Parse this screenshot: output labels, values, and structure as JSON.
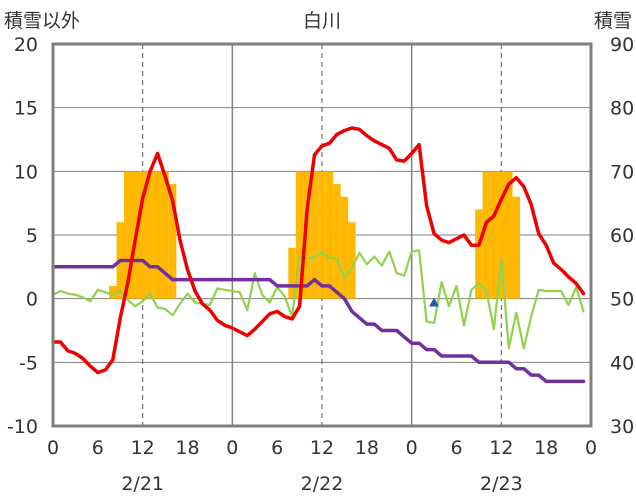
{
  "chart_data": {
    "type": "line",
    "title": "白川",
    "left_axis": {
      "label": "積雪以外",
      "range": [
        -10,
        20
      ],
      "ticks": [
        -10,
        -5,
        0,
        5,
        10,
        15,
        20
      ]
    },
    "right_axis": {
      "label": "積雪",
      "range": [
        30,
        90
      ],
      "ticks": [
        30,
        40,
        50,
        60,
        70,
        80,
        90
      ]
    },
    "x_axis": {
      "range": [
        0,
        72
      ],
      "tick_values": [
        0,
        6,
        12,
        18,
        24,
        30,
        36,
        42,
        48,
        54,
        60,
        66,
        72
      ],
      "tick_labels": [
        "0",
        "6",
        "12",
        "18",
        "0",
        "6",
        "12",
        "18",
        "0",
        "6",
        "12",
        "18",
        "0"
      ],
      "day_separators": [
        24,
        48
      ],
      "dashed_lines": [
        12,
        36,
        60
      ],
      "date_labels": [
        {
          "x": 12,
          "text": "2/21"
        },
        {
          "x": 36,
          "text": "2/22"
        },
        {
          "x": 60,
          "text": "2/23"
        }
      ]
    },
    "grid": true,
    "colors": {
      "snow": "#FFB800",
      "temperature": "#EE0000",
      "snow_depth": "#7030A0",
      "wind": "#92D050",
      "marker": "#1F5BA6",
      "frame": "#7F7F7F"
    },
    "snow_bars": {
      "axis": "right",
      "x": [
        8,
        9,
        10,
        11,
        12,
        13,
        14,
        15,
        16,
        32,
        33,
        34,
        35,
        36,
        37,
        38,
        39,
        40,
        57,
        58,
        59,
        60,
        61,
        62
      ],
      "values": [
        52,
        62,
        70,
        70,
        70,
        70,
        70,
        70,
        68,
        58,
        70,
        70,
        70,
        70,
        70,
        68,
        66,
        62,
        64,
        70,
        70,
        70,
        70,
        66
      ]
    },
    "series": [
      {
        "key": "temperature",
        "axis": "left",
        "x": [
          0,
          1,
          2,
          3,
          4,
          5,
          6,
          7,
          8,
          9,
          10,
          11,
          12,
          13,
          14,
          15,
          16,
          17,
          18,
          19,
          20,
          21,
          22,
          23,
          24,
          25,
          26,
          27,
          28,
          29,
          30,
          31,
          32,
          33,
          34,
          35,
          36,
          37,
          38,
          39,
          40,
          41,
          42,
          43,
          44,
          45,
          46,
          47,
          48,
          49,
          50,
          51,
          52,
          53,
          54,
          55,
          56,
          57,
          58,
          59,
          60,
          61,
          62,
          63,
          64,
          65,
          66,
          67,
          68,
          69,
          70,
          71
        ],
        "values": [
          -3.4,
          -3.4,
          -4.1,
          -4.3,
          -4.7,
          -5.3,
          -5.8,
          -5.6,
          -4.8,
          -1.5,
          1.2,
          4.6,
          7.9,
          10.0,
          11.4,
          9.6,
          7.7,
          4.6,
          2.3,
          0.6,
          -0.4,
          -0.9,
          -1.7,
          -2.1,
          -2.3,
          -2.6,
          -2.9,
          -2.4,
          -1.8,
          -1.2,
          -1.0,
          -1.4,
          -1.6,
          -0.6,
          7.0,
          11.3,
          12.0,
          12.2,
          12.9,
          13.2,
          13.4,
          13.3,
          12.8,
          12.4,
          12.1,
          11.8,
          10.9,
          10.8,
          11.4,
          12.1,
          7.3,
          5.1,
          4.6,
          4.4,
          4.7,
          5.0,
          4.2,
          4.2,
          6.0,
          6.5,
          7.8,
          9.0,
          9.5,
          8.8,
          7.4,
          5.1,
          4.2,
          2.8,
          2.3,
          1.7,
          1.2,
          0.4
        ]
      },
      {
        "key": "snow_depth",
        "axis": "left",
        "x": [
          0,
          6,
          7,
          8,
          9,
          10,
          11,
          12,
          13,
          14,
          15,
          16,
          17,
          18,
          19,
          20,
          21,
          22,
          23,
          24,
          25,
          26,
          27,
          28,
          29,
          30,
          31,
          32,
          33,
          34,
          35,
          36,
          37,
          38,
          39,
          40,
          41,
          42,
          43,
          44,
          45,
          46,
          47,
          48,
          49,
          50,
          51,
          52,
          53,
          54,
          55,
          56,
          57,
          58,
          59,
          60,
          61,
          62,
          63,
          64,
          65,
          66,
          67,
          68,
          69,
          70,
          71
        ],
        "values": [
          2.5,
          2.5,
          2.5,
          2.5,
          3.0,
          3.0,
          3.0,
          3.0,
          2.5,
          2.5,
          2.0,
          1.5,
          1.5,
          1.5,
          1.5,
          1.5,
          1.5,
          1.5,
          1.5,
          1.5,
          1.5,
          1.5,
          1.5,
          1.5,
          1.5,
          1.0,
          1.0,
          1.0,
          1.0,
          1.0,
          1.5,
          1.0,
          1.0,
          0.5,
          0.0,
          -1.0,
          -1.5,
          -2.0,
          -2.0,
          -2.5,
          -2.5,
          -2.5,
          -3.0,
          -3.5,
          -3.5,
          -4.0,
          -4.0,
          -4.5,
          -4.5,
          -4.5,
          -4.5,
          -4.5,
          -5.0,
          -5.0,
          -5.0,
          -5.0,
          -5.0,
          -5.5,
          -5.5,
          -6.0,
          -6.0,
          -6.5,
          -6.5,
          -6.5,
          -6.5,
          -6.5,
          -6.5
        ]
      },
      {
        "key": "wind",
        "axis": "left",
        "x": [
          0,
          1,
          2,
          3,
          4,
          5,
          6,
          7,
          8,
          9,
          10,
          11,
          12,
          13,
          14,
          15,
          16,
          17,
          18,
          19,
          20,
          21,
          22,
          23,
          24,
          25,
          26,
          27,
          28,
          29,
          30,
          31,
          32,
          33,
          34,
          35,
          36,
          37,
          38,
          39,
          40,
          41,
          42,
          43,
          44,
          45,
          46,
          47,
          48,
          49,
          50,
          51,
          52,
          53,
          54,
          55,
          56,
          57,
          58,
          59,
          60,
          61,
          62,
          63,
          64,
          65,
          66,
          67,
          68,
          69,
          70,
          71
        ],
        "values": [
          0.3,
          0.6,
          0.4,
          0.3,
          0.1,
          -0.2,
          0.7,
          0.5,
          0.3,
          0.6,
          -0.1,
          -0.6,
          -0.2,
          0.4,
          -0.7,
          -0.8,
          -1.3,
          -0.4,
          0.4,
          -0.3,
          -0.4,
          -0.5,
          0.8,
          0.7,
          0.6,
          0.5,
          -0.9,
          2.0,
          0.3,
          -0.3,
          0.9,
          0.2,
          -1.4,
          3.4,
          3.1,
          3.3,
          3.6,
          3.2,
          3.1,
          1.6,
          2.4,
          3.6,
          2.7,
          3.3,
          2.6,
          3.7,
          2.0,
          1.8,
          3.7,
          3.8,
          -1.8,
          -1.9,
          1.3,
          -0.6,
          1.0,
          -2.1,
          0.7,
          1.2,
          0.6,
          -2.4,
          3.1,
          -3.9,
          -1.1,
          -3.9,
          -1.4,
          0.7,
          0.6,
          0.6,
          0.6,
          -0.5,
          0.9,
          -1.0
        ]
      }
    ],
    "markers": [
      {
        "axis": "left",
        "x": 51,
        "y": -0.3
      }
    ]
  }
}
